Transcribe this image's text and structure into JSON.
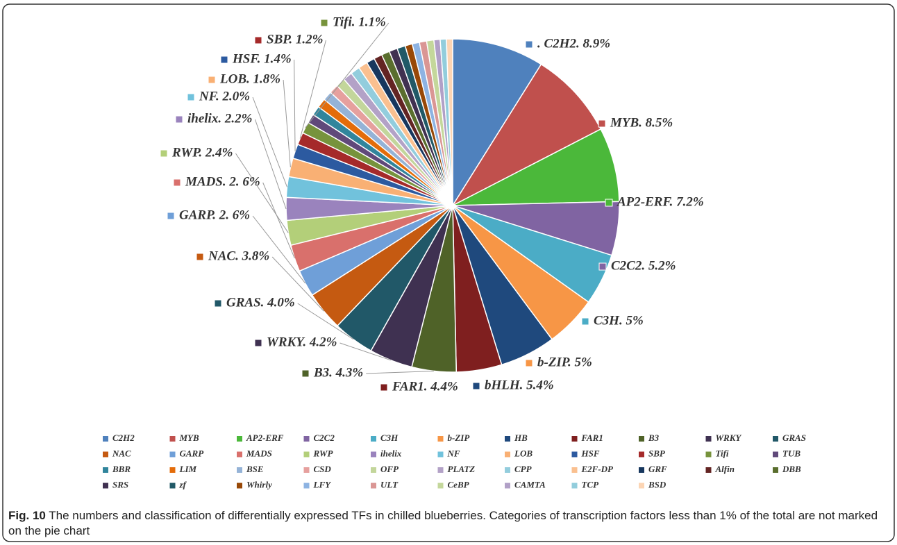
{
  "chart_data": {
    "type": "pie",
    "categories": [
      "C2H2",
      "MYB",
      "AP2-ERF",
      "C2C2",
      "C3H",
      "b-ZIP",
      "HB",
      "FAR1",
      "B3",
      "WRKY",
      "GRAS",
      "NAC",
      "GARP",
      "MADS",
      "RWP",
      "ihelix",
      "NF",
      "LOB",
      "HSF",
      "SBP",
      "Tifi",
      "TUB",
      "BBR",
      "LIM",
      "BSE",
      "CSD",
      "OFP",
      "PLATZ",
      "CPP",
      "E2F-DP",
      "GRF",
      "Alfin",
      "DBB",
      "SRS",
      "zf",
      "Whirly",
      "LFY",
      "ULT",
      "CeBP",
      "CAMTA",
      "TCP",
      "BSD"
    ],
    "values": [
      8.9,
      8.5,
      7.2,
      5.2,
      5,
      5,
      5.4,
      4.4,
      4.3,
      4.2,
      4.0,
      3.8,
      2.6,
      2.6,
      2.4,
      2.2,
      2.0,
      1.8,
      1.4,
      1.2,
      1.1,
      0.9,
      0.9,
      0.9,
      0.9,
      0.9,
      0.9,
      0.9,
      0.9,
      0.9,
      0.8,
      0.8,
      0.8,
      0.8,
      0.8,
      0.7,
      0.7,
      0.7,
      0.7,
      0.6,
      0.6,
      0.6
    ],
    "value_labels": [
      ". C2H2. 8.9%",
      "MYB. 8.5%",
      "AP2-ERF. 7.2%",
      "C2C2. 5.2%",
      "C3H. 5%",
      "b-ZIP. 5%",
      "bHLH. 5.4%",
      "FAR1. 4.4%",
      "B3. 4.3%",
      "WRKY. 4.2%",
      "GRAS. 4.0%",
      "NAC. 3.8%",
      "GARP. 2. 6%",
      "MADS. 2. 6%",
      "RWP. 2.4%",
      "ihelix. 2.2%",
      "NF. 2.0%",
      "LOB. 1.8%",
      "HSF. 1.4%",
      "SBP. 1.2%",
      "Tifi. 1.1%",
      null,
      null,
      null,
      null,
      null,
      null,
      null,
      null,
      null,
      null,
      null,
      null,
      null,
      null,
      null,
      null,
      null,
      null,
      null,
      null,
      null
    ],
    "colors": [
      "#4f81bd",
      "#c0504d",
      "#4bb83a",
      "#8064a2",
      "#4bacc6",
      "#f79646",
      "#1f497d",
      "#7f1f1f",
      "#4f6228",
      "#3f3151",
      "#215868",
      "#c55a11",
      "#6f9fd8",
      "#d9706c",
      "#b3cf79",
      "#9a83bd",
      "#71c2dc",
      "#f9b074",
      "#2c5aa0",
      "#a52a2a",
      "#77933c",
      "#60497a",
      "#31859c",
      "#e46c0a",
      "#95b3d7",
      "#e6a09e",
      "#c3d69b",
      "#b3a2c7",
      "#93cddd",
      "#fac090",
      "#17375e",
      "#632423",
      "#5a6e2e",
      "#403151",
      "#215967",
      "#984807",
      "#8db3e2",
      "#da9694",
      "#c4d79b",
      "#b1a0c7",
      "#92cddc",
      "#fcd5b4"
    ]
  },
  "caption": {
    "label": "Fig. 10",
    "text": "The numbers and classification of differentially expressed TFs in chilled blueberries. Categories of transcription factors less than 1% of the total are not marked on the pie chart"
  }
}
